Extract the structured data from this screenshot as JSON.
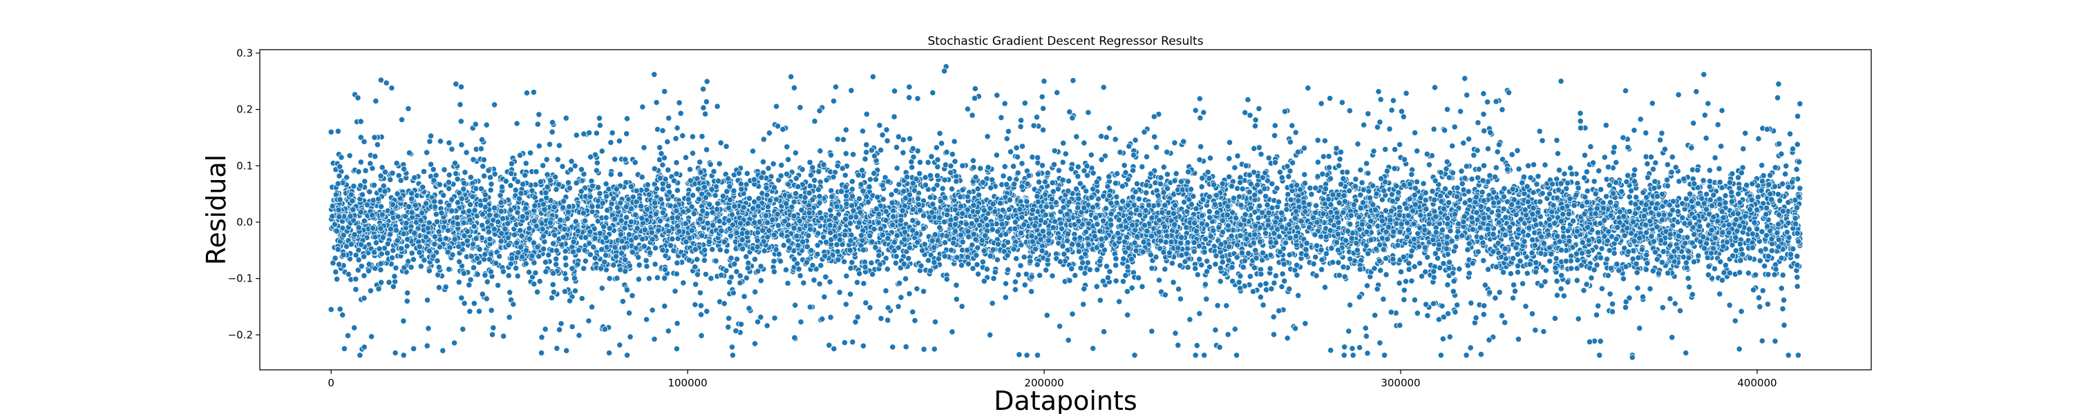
{
  "chart_data": {
    "type": "scatter",
    "title": "Stochastic Gradient Descent Regressor Results",
    "xlabel": "Datapoints",
    "ylabel": "Residual",
    "xlim": [
      -20000,
      432000
    ],
    "ylim": [
      -0.262,
      0.306
    ],
    "x_ticks": [
      0,
      100000,
      200000,
      300000,
      400000
    ],
    "x_tick_labels": [
      "0",
      "100000",
      "200000",
      "300000",
      "400000"
    ],
    "y_ticks": [
      -0.2,
      -0.1,
      0.0,
      0.1,
      0.2,
      0.3
    ],
    "y_tick_labels": [
      "−0.2",
      "−0.1",
      "0.0",
      "0.1",
      "0.2",
      "0.3"
    ],
    "grid": false,
    "legend": "none",
    "marker_color": "#1f77b4",
    "marker_edge_color": "#ffffff",
    "point_count_sampled": 9000,
    "x_range_data": [
      0,
      412000
    ],
    "distribution": "residuals centered near 0; dense band roughly -0.12 to 0.12; sparse outliers out to about -0.24 and 0.28",
    "series": [
      {
        "points": [
          [
            14000,
            0.252
          ],
          [
            15500,
            0.247
          ],
          [
            17000,
            0.238
          ],
          [
            35000,
            0.245
          ],
          [
            36500,
            0.24
          ],
          [
            129000,
            0.258
          ],
          [
            152000,
            0.258
          ],
          [
            172500,
            0.276
          ],
          [
            172000,
            0.268
          ],
          [
            200000,
            0.25
          ],
          [
            318000,
            0.255
          ],
          [
            345000,
            0.25
          ],
          [
            406000,
            0.245
          ],
          [
            18000,
            -0.232
          ],
          [
            59000,
            -0.232
          ],
          [
            66000,
            -0.228
          ],
          [
            78000,
            -0.232
          ],
          [
            130000,
            -0.205
          ],
          [
            193000,
            -0.235
          ],
          [
            365000,
            -0.24
          ],
          [
            380000,
            -0.232
          ],
          [
            395000,
            -0.225
          ],
          [
            0,
            0.16
          ],
          [
            0,
            -0.155
          ],
          [
            410000,
            0.13
          ],
          [
            412000,
            0.21
          ]
        ]
      }
    ]
  }
}
